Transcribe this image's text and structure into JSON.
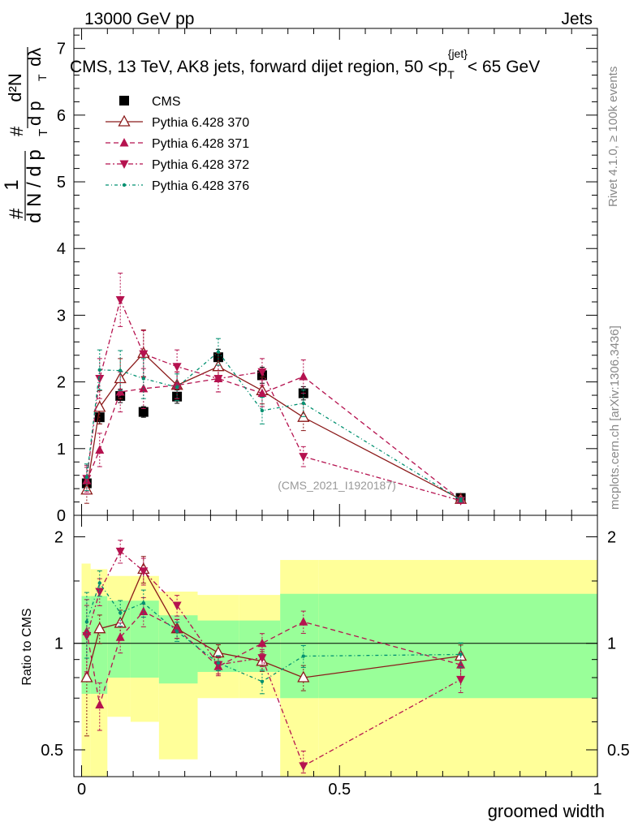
{
  "header": {
    "left": "13000 GeV pp",
    "right": "Jets"
  },
  "title": {
    "text": "CMS, 13 TeV, AK8 jets, forward dijet region, 50 <p",
    "sub": "T",
    "sup": "{jet}",
    "tail": "< 65 GeV"
  },
  "side_labels": {
    "rivet": "Rivet 4.1.0, ≥ 100k events",
    "mcplots": "mcplots.cern.ch [arXiv:1306.3436]"
  },
  "watermark": "(CMS_2021_I1920187)",
  "ylabel_main": {
    "frac_num": "1",
    "frac_den": "d N / d p",
    "hash": "#",
    "num2": "d²N",
    "den2": "d p",
    "dlambda": "dλ",
    "t": "T"
  },
  "ylabel_ratio": "Ratio to CMS",
  "xlabel": "groomed width",
  "chart_data": {
    "type": "line",
    "x_range": [
      -0.015,
      1.0
    ],
    "main": {
      "ylim": [
        0,
        7.3
      ],
      "yticks": [
        0,
        1,
        2,
        3,
        4,
        5,
        6,
        7
      ],
      "ytick_labels": [
        "0",
        "1",
        "2",
        "3",
        "4",
        "5",
        "6",
        "7"
      ]
    },
    "ratio": {
      "ylim": [
        0.42,
        2.3
      ],
      "log": true,
      "yticks": [
        0.5,
        1,
        2
      ],
      "ytick_labels": [
        "0.5",
        "1",
        "2"
      ]
    },
    "xticks": [
      0,
      0.5,
      1
    ],
    "xtick_labels": [
      "0",
      "0.5",
      "1"
    ],
    "bin_edges": [
      0,
      0.0175,
      0.05,
      0.095,
      0.15,
      0.225,
      0.305,
      0.385,
      0.46,
      1.0
    ],
    "bin_centers": [
      0.01,
      0.035,
      0.075,
      0.12,
      0.185,
      0.265,
      0.35,
      0.43,
      0.735
    ],
    "series": [
      {
        "name": "CMS",
        "marker": "square",
        "color": "#000000",
        "dash": "none",
        "values": [
          0.48,
          1.47,
          1.79,
          1.55,
          1.78,
          2.37,
          2.1,
          1.83,
          0.26
        ],
        "errors": [
          0.1,
          0.1,
          0.1,
          0.08,
          0.1,
          0.12,
          0.12,
          0.1,
          0.03
        ],
        "ratio": [
          1,
          1,
          1,
          1,
          1,
          1,
          1,
          1,
          1
        ]
      },
      {
        "name": "Pythia 6.428 370",
        "marker": "triangle-up-open",
        "color": "#8b1a1a",
        "dash": "none",
        "values": [
          0.38,
          1.62,
          2.05,
          2.43,
          1.95,
          2.23,
          1.87,
          1.47,
          0.24
        ],
        "errors": [
          0.2,
          0.25,
          0.3,
          0.35,
          0.2,
          0.2,
          0.2,
          0.2,
          0.03
        ],
        "ratio": [
          0.8,
          1.1,
          1.14,
          1.62,
          1.1,
          0.94,
          0.89,
          0.8,
          0.92
        ]
      },
      {
        "name": "Pythia 6.428 371",
        "marker": "triangle-up",
        "color": "#b5124f",
        "dash": "6,4",
        "values": [
          0.52,
          0.98,
          1.85,
          1.9,
          1.95,
          2.05,
          1.83,
          2.08,
          0.23
        ],
        "errors": [
          0.2,
          0.25,
          0.3,
          0.3,
          0.2,
          0.2,
          0.2,
          0.25,
          0.03
        ],
        "ratio": [
          1.08,
          0.67,
          1.04,
          1.23,
          1.1,
          0.86,
          1.0,
          1.15,
          0.87
        ]
      },
      {
        "name": "Pythia 6.428 372",
        "marker": "triangle-down",
        "color": "#b5124f",
        "dash": "6,3,2,3",
        "values": [
          0.55,
          2.05,
          3.23,
          2.42,
          2.23,
          2.05,
          2.15,
          0.88,
          0.22
        ],
        "errors": [
          0.2,
          0.3,
          0.4,
          0.35,
          0.25,
          0.2,
          0.2,
          0.15,
          0.03
        ],
        "ratio": [
          1.05,
          1.4,
          1.82,
          1.6,
          1.28,
          0.87,
          0.91,
          0.45,
          0.79
        ]
      },
      {
        "name": "Pythia 6.428 376",
        "marker": "dot",
        "color": "#009070",
        "dash": "4,3,1,3",
        "values": [
          0.57,
          2.18,
          2.17,
          2.05,
          1.92,
          2.45,
          1.57,
          1.68,
          0.23
        ],
        "errors": [
          0.2,
          0.3,
          0.3,
          0.3,
          0.2,
          0.2,
          0.2,
          0.2,
          0.03
        ],
        "ratio": [
          1.15,
          1.48,
          1.22,
          1.3,
          1.08,
          0.88,
          0.78,
          0.92,
          0.93
        ]
      }
    ],
    "bands": {
      "green_lo": [
        0.72,
        0.72,
        0.8,
        0.8,
        0.77,
        0.83,
        0.83,
        0.7,
        0.7
      ],
      "green_hi": [
        1.36,
        1.36,
        1.32,
        1.32,
        1.2,
        1.16,
        1.16,
        1.38,
        1.38
      ],
      "yellow_lo": [
        0.3,
        0.42,
        0.62,
        0.6,
        0.47,
        0.7,
        0.7,
        0.3,
        0.3
      ],
      "yellow_hi": [
        1.68,
        1.62,
        1.55,
        1.55,
        1.4,
        1.37,
        1.37,
        1.72,
        1.72
      ]
    },
    "legend_position": "top-left"
  },
  "colors": {
    "band_green": "#99ff99",
    "band_yellow": "#ffff99",
    "side_text": "#888888",
    "watermark": "#999999"
  }
}
